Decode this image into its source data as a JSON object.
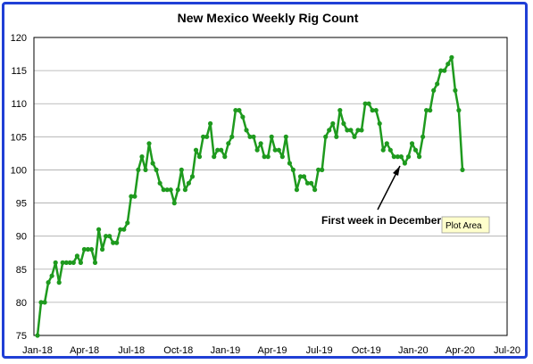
{
  "chart_data": {
    "type": "line",
    "title": "New Mexico Weekly Rig Count",
    "xlabel": "",
    "ylabel": "",
    "ylim": [
      75,
      120
    ],
    "y_ticks": [
      "75",
      "80",
      "85",
      "90",
      "95",
      "100",
      "105",
      "110",
      "115",
      "120"
    ],
    "x_ticks": [
      "Jan-18",
      "Apr-18",
      "Jul-18",
      "Oct-18",
      "Jan-19",
      "Apr-19",
      "Jul-19",
      "Oct-19",
      "Jan-20",
      "Apr-20",
      "Jul-20"
    ],
    "grid": "horizontal",
    "line_color": "#1e9a1e",
    "series": [
      {
        "values": [
          75,
          80,
          80,
          83,
          84,
          86,
          83,
          86,
          86,
          86,
          86,
          87,
          86,
          88,
          88,
          88,
          86,
          91,
          88,
          90,
          90,
          89,
          89,
          91,
          91,
          92,
          96,
          96,
          100,
          102,
          100,
          104,
          101,
          100,
          98,
          97,
          97,
          97,
          95,
          97,
          100,
          97,
          98,
          99,
          103,
          102,
          105,
          105,
          107,
          102,
          103,
          103,
          102,
          104,
          105,
          109,
          109,
          108,
          106,
          105,
          105,
          103,
          104,
          102,
          102,
          105,
          103,
          103,
          102,
          105,
          101,
          100,
          97,
          99,
          99,
          98,
          98,
          97,
          100,
          100,
          105,
          106,
          107,
          105,
          109,
          107,
          106,
          106,
          105,
          106,
          106,
          110,
          110,
          109,
          109,
          107,
          103,
          104,
          103,
          102,
          102,
          102,
          101,
          102,
          104,
          103,
          102,
          105,
          109,
          109,
          112,
          113,
          115,
          115,
          116,
          117,
          112,
          109,
          100
        ]
      }
    ],
    "annotations": [
      {
        "text": "First week in December"
      }
    ],
    "tooltip": "Plot Area"
  }
}
